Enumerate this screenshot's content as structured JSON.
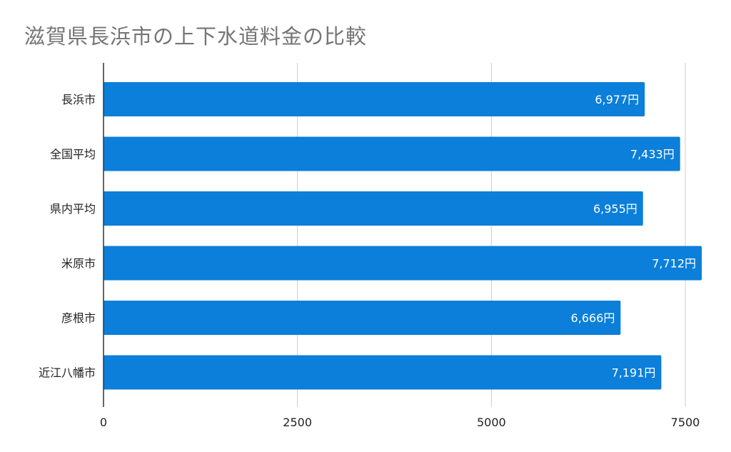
{
  "chart_data": {
    "type": "bar",
    "orientation": "horizontal",
    "title": "滋賀県長浜市の上下水道料金の比較",
    "categories": [
      "長浜市",
      "全国平均",
      "県内平均",
      "米原市",
      "彦根市",
      "近江八幡市"
    ],
    "values": [
      6977,
      7433,
      6955,
      7712,
      6666,
      7191
    ],
    "data_labels": [
      "6,977円",
      "7,433円",
      "6,955円",
      "7,712円",
      "6,666円",
      "7,191円"
    ],
    "x_ticks": [
      0,
      2500,
      5000,
      7500
    ],
    "x_tick_labels": [
      "0",
      "2500",
      "5000",
      "7500"
    ],
    "xlim": [
      0,
      7500
    ],
    "grid": true,
    "legend": "none",
    "xlabel": "",
    "ylabel": "",
    "bar_color": "#0b7fd9",
    "grid_color": "#cccccc",
    "axis_color": "#333333",
    "title_color": "#757575"
  }
}
